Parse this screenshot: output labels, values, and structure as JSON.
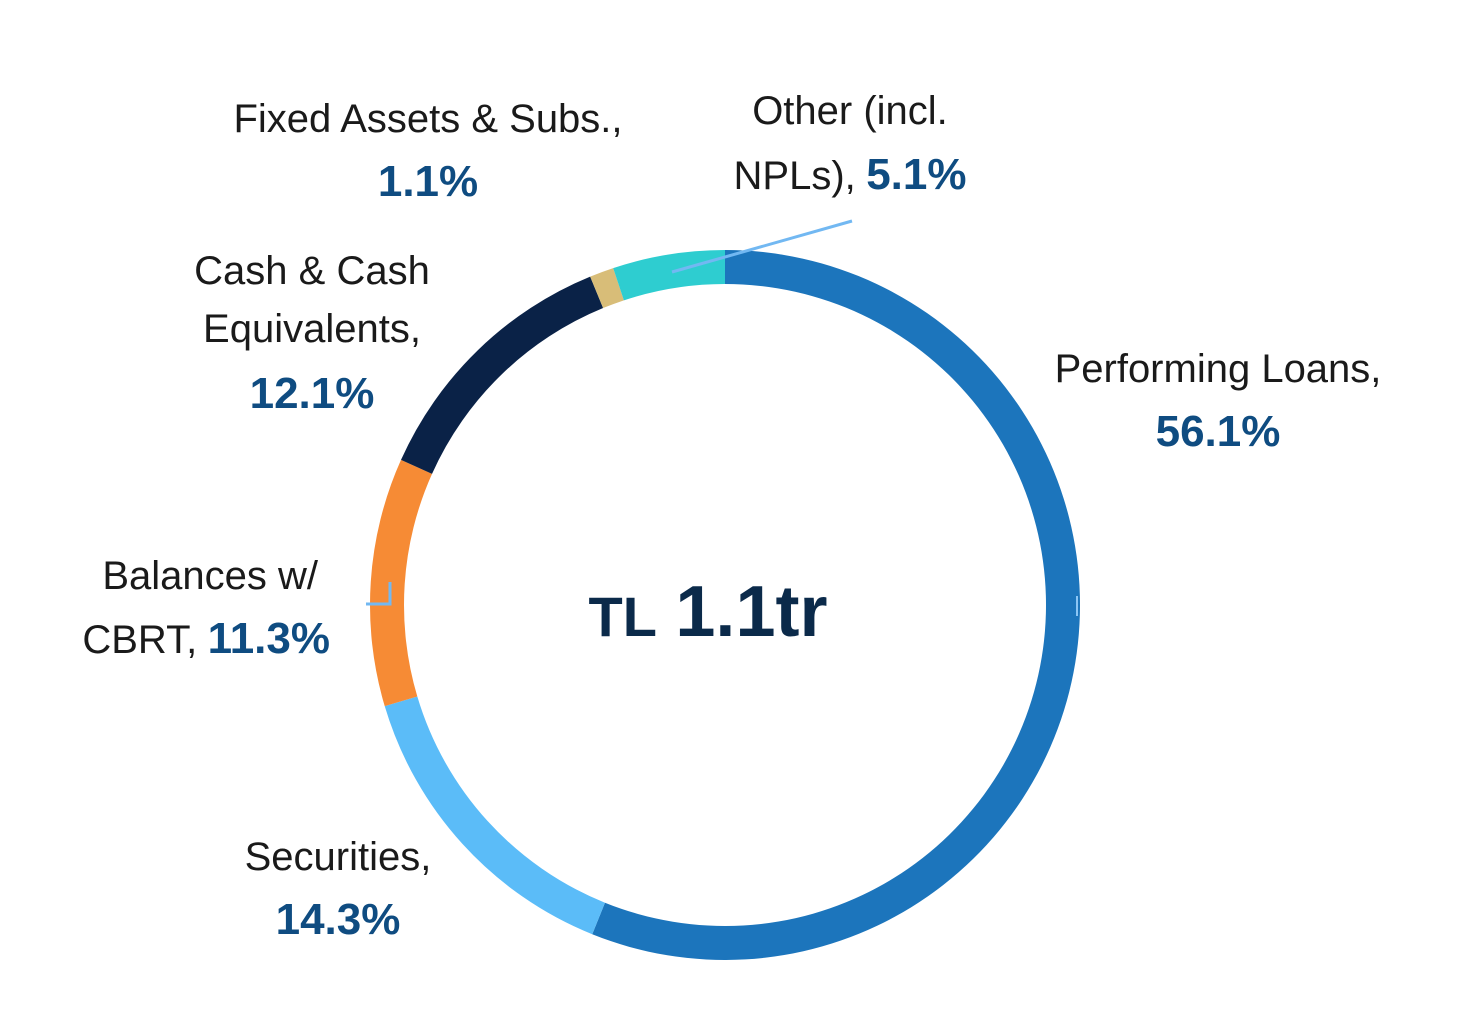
{
  "chart_data": {
    "type": "pie",
    "variant": "donut",
    "center_label": {
      "prefix": "TL",
      "value": "1.1tr"
    },
    "slices": [
      {
        "name": "Performing Loans,",
        "value": 56.1,
        "value_label": "56.1%",
        "color": "#1c75bc"
      },
      {
        "name": "Securities,",
        "value": 14.3,
        "value_label": "14.3%",
        "color": "#5bbcf8"
      },
      {
        "name": "Balances w/ CBRT,",
        "value": 11.3,
        "value_label": "11.3%",
        "color": "#f68b35"
      },
      {
        "name": "Cash & Cash Equivalents,",
        "value": 12.1,
        "value_label": "12.1%",
        "color": "#0a2247"
      },
      {
        "name": "Fixed Assets & Subs.,",
        "value": 1.1,
        "value_label": "1.1%",
        "color": "#d8bd78"
      },
      {
        "name": "Other (incl. NPLs),",
        "value": 5.1,
        "value_label": "5.1%",
        "color": "#2ecdd0"
      }
    ],
    "start_angle": "top, clockwise",
    "legend": "none (labels placed around the ring)"
  }
}
